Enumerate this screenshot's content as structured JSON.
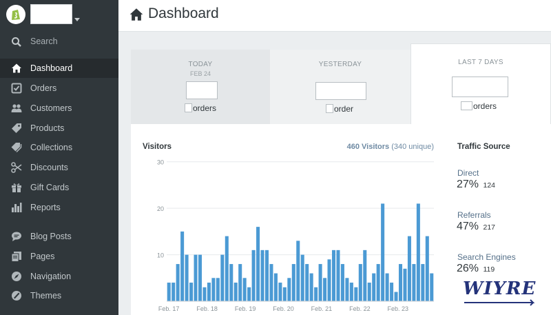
{
  "sidebar": {
    "search_label": "Search",
    "items": [
      {
        "label": "Dashboard",
        "icon": "home-icon",
        "active": true
      },
      {
        "label": "Orders",
        "icon": "orders-icon"
      },
      {
        "label": "Customers",
        "icon": "customers-icon"
      },
      {
        "label": "Products",
        "icon": "tag-icon"
      },
      {
        "label": "Collections",
        "icon": "collections-icon"
      },
      {
        "label": "Discounts",
        "icon": "scissors-icon"
      },
      {
        "label": "Gift Cards",
        "icon": "gift-icon"
      },
      {
        "label": "Reports",
        "icon": "reports-icon"
      },
      {
        "label": "Blog Posts",
        "icon": "chat-icon"
      },
      {
        "label": "Pages",
        "icon": "pages-icon"
      },
      {
        "label": "Navigation",
        "icon": "compass-icon"
      },
      {
        "label": "Themes",
        "icon": "brush-icon"
      }
    ]
  },
  "header": {
    "title": "Dashboard"
  },
  "tabs": [
    {
      "label": "TODAY",
      "date": "FEB 24",
      "orders_label": "orders"
    },
    {
      "label": "YESTERDAY",
      "orders_label": "order"
    },
    {
      "label": "LAST 7 DAYS",
      "orders_label": "orders"
    }
  ],
  "visitors": {
    "title": "Visitors",
    "count": "460 Visitors",
    "unique": "(340 unique)"
  },
  "chart_data": {
    "type": "bar",
    "ylim": [
      0,
      31
    ],
    "yticks": [
      10,
      20,
      30
    ],
    "xtick_labels": [
      "Feb. 17",
      "Feb. 18",
      "Feb. 19",
      "Feb. 20",
      "Feb. 21",
      "Feb. 22",
      "Feb. 23"
    ],
    "values": [
      4,
      4,
      8,
      15,
      10,
      4,
      10,
      10,
      3,
      4,
      5,
      5,
      10,
      14,
      8,
      4,
      8,
      5,
      3,
      11,
      16,
      11,
      11,
      8,
      6,
      4,
      3,
      5,
      8,
      13,
      10,
      8,
      6,
      3,
      8,
      5,
      9,
      11,
      11,
      8,
      5,
      4,
      3,
      8,
      11,
      4,
      6,
      8,
      21,
      6,
      4,
      2,
      8,
      7,
      14,
      8,
      21,
      8,
      14,
      6
    ],
    "bar_color": "#4b9ad4",
    "gridlines": true
  },
  "traffic": {
    "title": "Traffic Source",
    "sources": [
      {
        "label": "Direct",
        "percent": "27%",
        "count": "124"
      },
      {
        "label": "Referrals",
        "percent": "47%",
        "count": "217"
      },
      {
        "label": "Search Engines",
        "percent": "26%",
        "count": "119"
      }
    ]
  },
  "watermark": "WIYRE"
}
